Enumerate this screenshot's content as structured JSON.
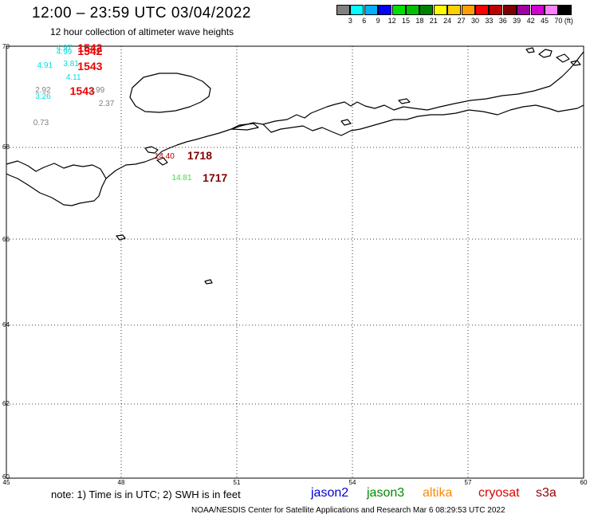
{
  "header": {
    "title": "12:00 – 23:59 UTC 03/04/2022",
    "subtitle": "12 hour collection of altimeter wave heights"
  },
  "colorbar": {
    "unit": "(ft)",
    "swatches": [
      {
        "color": "#808080",
        "label": ""
      },
      {
        "color": "#00ffff",
        "label": "3"
      },
      {
        "color": "#00b0ff",
        "label": "6"
      },
      {
        "color": "#0000ff",
        "label": "9"
      },
      {
        "color": "#00e000",
        "label": "12"
      },
      {
        "color": "#00c000",
        "label": "15"
      },
      {
        "color": "#008000",
        "label": "18"
      },
      {
        "color": "#ffff00",
        "label": "21"
      },
      {
        "color": "#ffd000",
        "label": "24"
      },
      {
        "color": "#ffa000",
        "label": "27"
      },
      {
        "color": "#ff0000",
        "label": "30"
      },
      {
        "color": "#c00000",
        "label": "33"
      },
      {
        "color": "#800000",
        "label": "36"
      },
      {
        "color": "#a000a0",
        "label": "39"
      },
      {
        "color": "#d000d0",
        "label": "42"
      },
      {
        "color": "#ff80ff",
        "label": "45"
      },
      {
        "color": "#000000",
        "label": "70"
      }
    ]
  },
  "map": {
    "lat_labels": [
      "70",
      "68",
      "66",
      "64",
      "62",
      "60"
    ],
    "lon_labels": [
      "45",
      "48",
      "51",
      "54",
      "57",
      "60"
    ],
    "observations": [
      {
        "text": "4.97",
        "color": "#00dddd",
        "size": 10,
        "lat": 69.95,
        "lon": 46.3
      },
      {
        "text": "4.99",
        "color": "#00dddd",
        "size": 10,
        "lat": 69.88,
        "lon": 46.3
      },
      {
        "text": "1542",
        "color": "#ee0000",
        "size": 14,
        "lat": 69.97,
        "lon": 46.85
      },
      {
        "text": "1542",
        "color": "#ee0000",
        "size": 14,
        "lat": 69.9,
        "lon": 46.85
      },
      {
        "text": "4.91",
        "color": "#00dddd",
        "size": 10,
        "lat": 69.6,
        "lon": 45.8
      },
      {
        "text": "3.81",
        "color": "#00dddd",
        "size": 10,
        "lat": 69.63,
        "lon": 46.48
      },
      {
        "text": "1543",
        "color": "#ee0000",
        "size": 14,
        "lat": 69.6,
        "lon": 46.85
      },
      {
        "text": "4.11",
        "color": "#00dddd",
        "size": 10,
        "lat": 69.37,
        "lon": 46.55
      },
      {
        "text": "2.92",
        "color": "#808080",
        "size": 10,
        "lat": 69.12,
        "lon": 45.75
      },
      {
        "text": "1543",
        "color": "#ee0000",
        "size": 14,
        "lat": 69.12,
        "lon": 46.65
      },
      {
        "text": "2.99",
        "color": "#808080",
        "size": 10,
        "lat": 69.12,
        "lon": 47.15
      },
      {
        "text": "3.26",
        "color": "#00dddd",
        "size": 10,
        "lat": 68.99,
        "lon": 45.75
      },
      {
        "text": "2.37",
        "color": "#808080",
        "size": 10,
        "lat": 68.85,
        "lon": 47.4
      },
      {
        "text": "0.73",
        "color": "#808080",
        "size": 10,
        "lat": 68.48,
        "lon": 45.7
      },
      {
        "text": "14.40",
        "color": "#b00000",
        "size": 10,
        "lat": 67.8,
        "lon": 48.85
      },
      {
        "text": "1718",
        "color": "#800000",
        "size": 14,
        "lat": 67.82,
        "lon": 49.7
      },
      {
        "text": "14.81",
        "color": "#44dd44",
        "size": 10,
        "lat": 67.32,
        "lon": 49.3
      },
      {
        "text": "1717",
        "color": "#800000",
        "size": 14,
        "lat": 67.34,
        "lon": 50.1
      }
    ]
  },
  "footer": {
    "note": "note: 1) Time is in UTC; 2) SWH is in feet",
    "satellites": [
      {
        "name": "jason2",
        "color": "#0000cc"
      },
      {
        "name": "jason3",
        "color": "#008800"
      },
      {
        "name": "altika",
        "color": "#ff8800"
      },
      {
        "name": "cryosat",
        "color": "#dd0000"
      },
      {
        "name": "s3a",
        "color": "#990000"
      }
    ],
    "credit": "NOAA/NESDIS Center for Satellite Applications and Research    Mar  6 08:29:53 UTC 2022"
  }
}
